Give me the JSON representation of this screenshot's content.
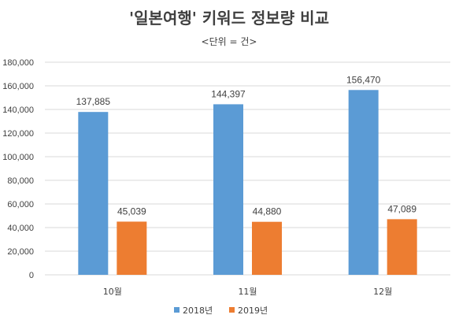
{
  "chart_data": {
    "type": "bar",
    "title": "'일본여행' 키워드 정보량 비교",
    "subtitle": "<단위 = 건>",
    "categories": [
      "10월",
      "11월",
      "12월"
    ],
    "series": [
      {
        "name": "2018년",
        "color": "#5b9bd5",
        "values": [
          137885,
          144397,
          156470
        ]
      },
      {
        "name": "2019년",
        "color": "#ed7d31",
        "values": [
          45039,
          44880,
          47089
        ]
      }
    ],
    "ylim": [
      0,
      180000
    ],
    "ytick_step": 20000,
    "grid": true,
    "legend": "bottom",
    "data_labels": true
  }
}
